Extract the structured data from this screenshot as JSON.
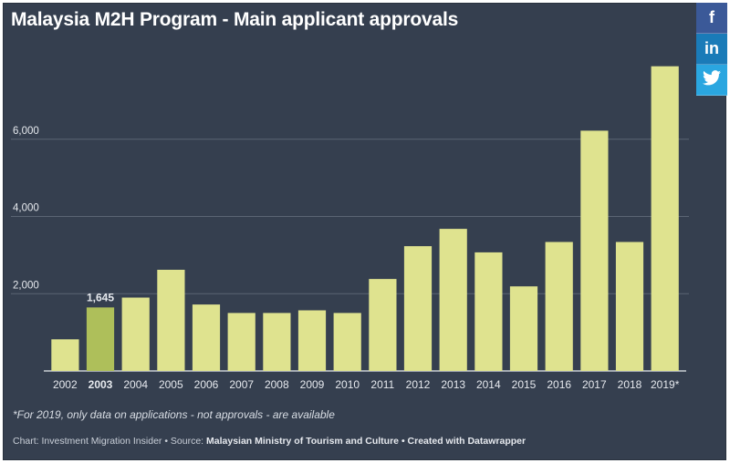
{
  "title": "Malaysia M2H Program - Main applicant approvals",
  "share": {
    "facebook_label": "f",
    "linkedin_label": "in",
    "twitter_label": "t"
  },
  "chart_data": {
    "type": "bar",
    "categories": [
      "2002",
      "2003",
      "2004",
      "2005",
      "2006",
      "2007",
      "2008",
      "2009",
      "2010",
      "2011",
      "2012",
      "2013",
      "2014",
      "2015",
      "2016",
      "2017",
      "2018",
      "2019*"
    ],
    "values": [
      820,
      1645,
      1900,
      2620,
      1720,
      1500,
      1500,
      1570,
      1500,
      2380,
      3230,
      3680,
      3070,
      2190,
      3340,
      6220,
      3340,
      7890
    ],
    "highlight_index": 1,
    "highlight_label": "1,645",
    "ylim": [
      0,
      8000
    ],
    "yticks": [
      2000,
      4000,
      6000
    ],
    "ytick_labels": [
      "2,000",
      "4,000",
      "6,000"
    ],
    "grid": true,
    "colors": {
      "bar": "#dfe38f",
      "highlight": "#aebf5a",
      "grid": "#5b6574",
      "axis": "#e8ebee",
      "text": "#e6e9ee"
    }
  },
  "footnote": "*For 2019, only data on applications - not approvals - are available",
  "credits": {
    "prefix": "Chart: Investment Migration Insider • Source: ",
    "source": "Malaysian Ministry of Tourism and Culture",
    "sep": " • ",
    "created": "Created with Datawrapper"
  }
}
